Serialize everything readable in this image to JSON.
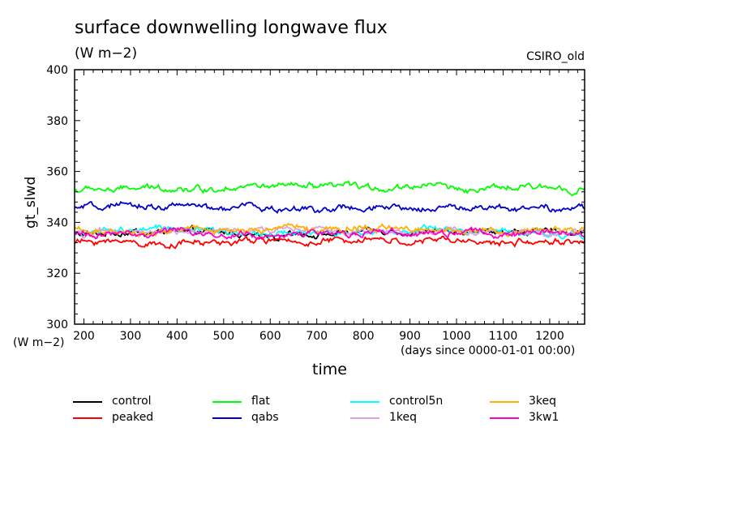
{
  "header": {
    "title": "surface downwelling longwave flux",
    "subtitle": "(W m−2)",
    "model": "CSIRO_old"
  },
  "chart_data": {
    "type": "line",
    "title": "surface downwelling longwave flux",
    "subtitle": "(W m−2)",
    "xlabel": "time",
    "xunits": "(days since 0000-01-01 00:00)",
    "ylabel": "gt_slwd",
    "yunits": "(W m−2)",
    "xlim": [
      180,
      1275
    ],
    "ylim": [
      300,
      400
    ],
    "xticks": [
      200,
      300,
      400,
      500,
      600,
      700,
      800,
      900,
      1000,
      1100,
      1200
    ],
    "yticks": [
      300,
      320,
      340,
      360,
      380,
      400
    ],
    "grid": false,
    "legend_position": "bottom",
    "x": [
      180,
      275,
      370,
      465,
      560,
      655,
      750,
      845,
      940,
      1035,
      1130,
      1225,
      1275
    ],
    "series": [
      {
        "name": "control",
        "color": "#000000",
        "values": [
          336,
          335.5,
          336.5,
          336,
          335.5,
          336,
          335.5,
          336,
          335.5,
          336,
          336.5,
          336,
          335.5
        ]
      },
      {
        "name": "peaked",
        "color": "#ff0000",
        "values": [
          332,
          332.5,
          332,
          331.5,
          332.5,
          332,
          332.5,
          331.5,
          332.5,
          332,
          331.5,
          332.5,
          332
        ]
      },
      {
        "name": "flat",
        "color": "#00ff00",
        "values": [
          352.5,
          353,
          353.5,
          353,
          354,
          353.5,
          353.5,
          353,
          354.5,
          353,
          353.5,
          354,
          353.5
        ]
      },
      {
        "name": "qabs",
        "color": "#0000cc",
        "values": [
          345.5,
          346,
          346.5,
          345.5,
          346,
          345.5,
          345.5,
          345,
          346,
          345.5,
          346,
          345.5,
          345
        ]
      },
      {
        "name": "control5n",
        "color": "#00ffff",
        "values": [
          336.5,
          336,
          336.5,
          337,
          336.5,
          336.5,
          336,
          336.5,
          337,
          336,
          336.5,
          336,
          335.5
        ]
      },
      {
        "name": "1keq",
        "color": "#e0a0e0",
        "values": [
          336,
          336.5,
          336,
          336.5,
          337,
          336.5,
          336.5,
          337,
          336.5,
          336,
          336.5,
          336.5,
          336
        ]
      },
      {
        "name": "3keq",
        "color": "#ffb000",
        "values": [
          337,
          336.5,
          337,
          337.5,
          336.5,
          337,
          337.5,
          337,
          336.5,
          337,
          336.5,
          337,
          336.5
        ]
      },
      {
        "name": "3kw1",
        "color": "#ff00cc",
        "values": [
          335.5,
          335.5,
          336,
          335.5,
          336,
          335.5,
          336,
          335.5,
          335.5,
          336,
          335.5,
          335.5,
          335
        ]
      }
    ]
  }
}
